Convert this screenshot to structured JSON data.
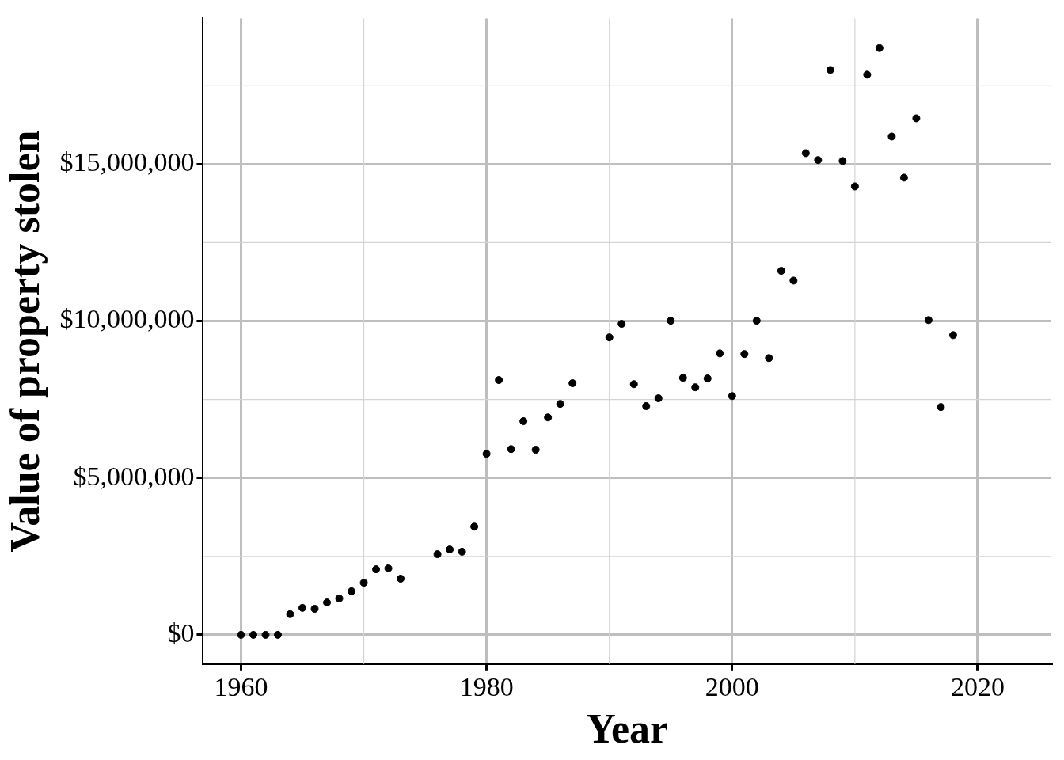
{
  "chart_data": {
    "type": "scatter",
    "x_label": "Year",
    "y_label": "Value of property stolen",
    "x": [
      1960,
      1961,
      1962,
      1963,
      1964,
      1965,
      1966,
      1967,
      1968,
      1969,
      1970,
      1971,
      1972,
      1973,
      1976,
      1977,
      1978,
      1979,
      1980,
      1981,
      1982,
      1983,
      1984,
      1985,
      1986,
      1987,
      1990,
      1991,
      1992,
      1993,
      1994,
      1995,
      1996,
      1997,
      1998,
      1999,
      2000,
      2001,
      2002,
      2003,
      2004,
      2005,
      2006,
      2007,
      2008,
      2009,
      2010,
      2011,
      2012,
      2013,
      2014,
      2015,
      2016,
      2017,
      2018
    ],
    "values": [
      0,
      0,
      0,
      0,
      660000,
      860000,
      830000,
      1030000,
      1160000,
      1390000,
      1660000,
      2090000,
      2120000,
      1790000,
      2570000,
      2720000,
      2650000,
      3450000,
      5770000,
      8120000,
      5920000,
      6810000,
      5900000,
      6930000,
      7360000,
      8020000,
      9480000,
      9910000,
      7990000,
      7290000,
      7540000,
      10010000,
      8190000,
      7890000,
      8170000,
      8970000,
      7610000,
      8950000,
      10010000,
      8820000,
      11600000,
      11290000,
      15350000,
      15130000,
      18000000,
      15100000,
      14290000,
      17850000,
      18700000,
      15880000,
      14570000,
      16460000,
      10030000,
      7260000,
      9550000
    ],
    "color": "#000000",
    "marker": "circle",
    "xlim": [
      1956.9,
      2026
    ],
    "xticks": [
      1960,
      1980,
      2000,
      2020
    ],
    "ylim": [
      -930000,
      19640000
    ],
    "yticks": [
      {
        "value": 0,
        "label": "$0"
      },
      {
        "value": 5000000,
        "label": "$5,000,000"
      },
      {
        "value": 10000000,
        "label": "$10,000,000"
      },
      {
        "value": 15000000,
        "label": "$15,000,000"
      }
    ],
    "grid": true
  }
}
